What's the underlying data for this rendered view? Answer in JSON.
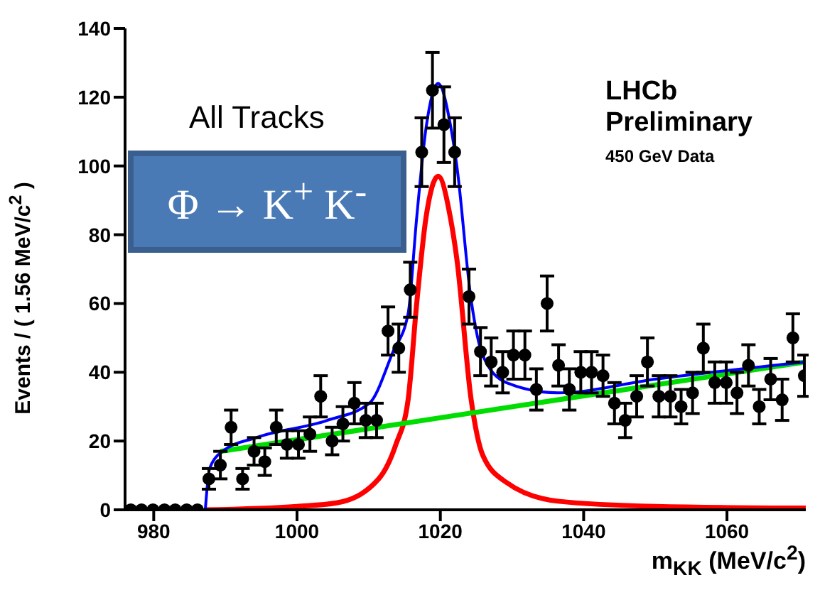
{
  "chart_data": {
    "type": "scatter",
    "xlabel": "m$_{KK}$ (MeV/c$^{2}$)",
    "ylabel": "Events / ( 1.56 MeV/c$^{2}$ )",
    "xlim": [
      976,
      1071
    ],
    "xticks": [
      980,
      1000,
      1020,
      1040,
      1060
    ],
    "ylim": [
      0,
      140
    ],
    "yticks": [
      0,
      20,
      40,
      60,
      80,
      100,
      120,
      140
    ],
    "grid": false,
    "legend": false,
    "annotations": [
      "All Tracks",
      "Φ → K$^{+}$ K$^{-}$",
      "LHCb",
      "Preliminary",
      "450 GeV Data"
    ],
    "series": [
      {
        "type": "line",
        "color": "#ff0000",
        "marker": "none",
        "line_style": "solid",
        "x": [
          987.2,
          1000,
          1005.5,
          1011.4,
          1013.8,
          1015.5,
          1016.7,
          1018,
          1019.7,
          1021.4,
          1022.3,
          1024.3,
          1025.9,
          1029.2,
          1036.4,
          1050,
          1071
        ],
        "values": [
          0,
          1,
          2,
          9,
          19,
          32,
          60,
          85,
          97,
          85,
          73,
          32,
          16,
          8,
          2.5,
          1,
          0.5
        ]
      },
      {
        "type": "line",
        "color": "#00dd00",
        "marker": "none",
        "line_style": "solid",
        "x": [
          989.3,
          1071
        ],
        "values": [
          17,
          43
        ]
      },
      {
        "type": "line",
        "color": "#0000ff",
        "marker": "none",
        "line_style": "solid",
        "x": [
          987.2,
          987.8,
          989.6,
          994.3,
          1004.2,
          1010.1,
          1013.4,
          1015.5,
          1016.7,
          1018,
          1019.7,
          1021.4,
          1022.3,
          1024.3,
          1025.9,
          1029.2,
          1036.4,
          1050,
          1071
        ],
        "values": [
          0,
          12,
          17,
          21,
          26,
          31,
          46,
          57,
          85,
          111,
          124,
          112,
          100,
          61,
          45,
          37,
          34,
          38,
          43
        ]
      },
      {
        "color": "#000000",
        "marker": "circle",
        "x": [
          976.8,
          978.3,
          979.9,
          981.5,
          983.0,
          984.6,
          986.1,
          987.7,
          989.3,
          990.8,
          992.4,
          994.0,
          995.5,
          997.1,
          998.6,
          1000.2,
          1001.8,
          1003.3,
          1004.9,
          1006.4,
          1008.0,
          1009.6,
          1011.1,
          1012.7,
          1014.2,
          1015.8,
          1017.4,
          1018.9,
          1020.5,
          1022.0,
          1024.0,
          1025.6,
          1027.1,
          1028.7,
          1030.2,
          1031.8,
          1033.4,
          1034.9,
          1036.5,
          1038.0,
          1039.6,
          1041.1,
          1042.7,
          1044.3,
          1045.8,
          1047.4,
          1048.9,
          1050.5,
          1052.1,
          1053.6,
          1055.2,
          1056.7,
          1058.3,
          1059.9,
          1061.4,
          1063.0,
          1064.5,
          1066.1,
          1067.7,
          1069.2,
          1070.8
        ],
        "values": [
          0,
          0,
          0,
          0,
          0,
          0,
          0,
          9,
          13,
          24,
          9,
          17,
          14,
          24,
          19,
          19,
          22,
          33,
          20,
          25,
          31,
          26,
          26,
          52,
          47,
          64,
          104,
          122,
          112,
          104,
          62,
          46,
          43,
          40,
          45,
          45,
          35,
          60,
          42,
          35,
          40,
          40,
          39,
          31,
          26,
          33,
          43,
          33,
          33,
          30,
          34,
          47,
          37,
          37,
          34,
          42,
          30,
          38,
          32,
          50,
          39
        ],
        "errors": [
          null,
          null,
          null,
          null,
          null,
          null,
          null,
          3,
          4,
          5,
          3,
          4,
          4,
          5,
          4,
          4,
          5,
          6,
          4,
          5,
          6,
          5,
          5,
          7,
          7,
          8,
          10,
          11,
          11,
          10,
          8,
          7,
          7,
          6,
          7,
          7,
          6,
          8,
          6,
          6,
          6,
          6,
          6,
          6,
          5,
          6,
          7,
          6,
          6,
          5,
          6,
          7,
          6,
          6,
          6,
          6,
          5,
          6,
          6,
          7,
          6
        ]
      }
    ]
  }
}
